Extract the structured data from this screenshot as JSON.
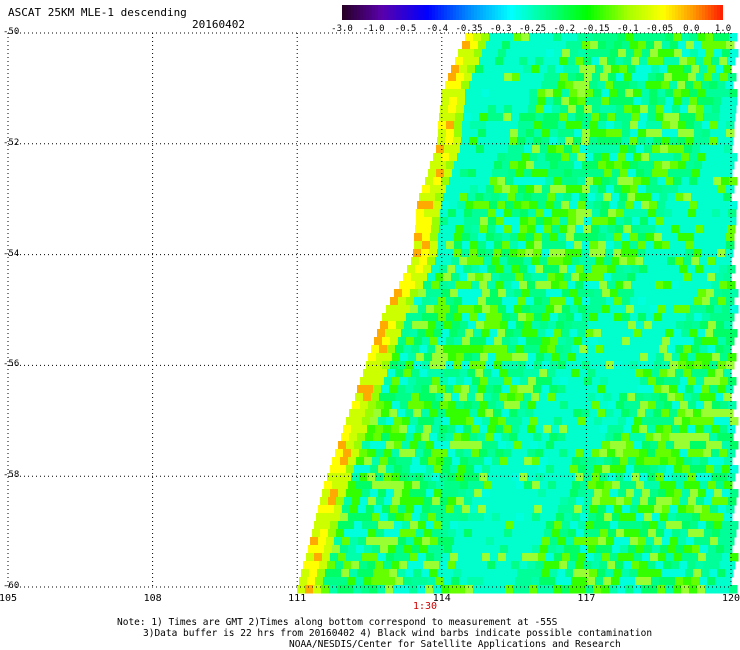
{
  "header": {
    "title": "ASCAT 25KM MLE-1 descending",
    "date": "20160402"
  },
  "colorbar": {
    "labels": [
      "-3.0",
      "-1.0",
      "-0.5",
      "-0.4",
      "-0.35",
      "-0.3",
      "-0.25",
      "-0.2",
      "-0.15",
      "-0.1",
      "-0.05",
      "0.0",
      "1.0"
    ],
    "colors": [
      "#2a0030",
      "#5a00a0",
      "#0000ff",
      "#0090ff",
      "#00ffff",
      "#00ff99",
      "#00ff00",
      "#66ff00",
      "#ccff00",
      "#ffff00",
      "#ffaa00",
      "#ff5500",
      "#ff0000"
    ]
  },
  "map": {
    "lat_labels": [
      "-50",
      "-52",
      "-54",
      "-56",
      "-58",
      "-60"
    ],
    "lon_labels": [
      "105",
      "108",
      "111",
      "114",
      "117",
      "120"
    ],
    "time_label": "1:30"
  },
  "notes": {
    "line1": "Note: 1) Times are GMT 2)Times along bottom correspond to measurement at -55S",
    "line2": "3)Data buffer is 22 hrs from 20160402 4) Black wind barbs indicate possible contamination",
    "line3": "NOAA/NESDIS/Center for Satellite Applications and Research"
  }
}
